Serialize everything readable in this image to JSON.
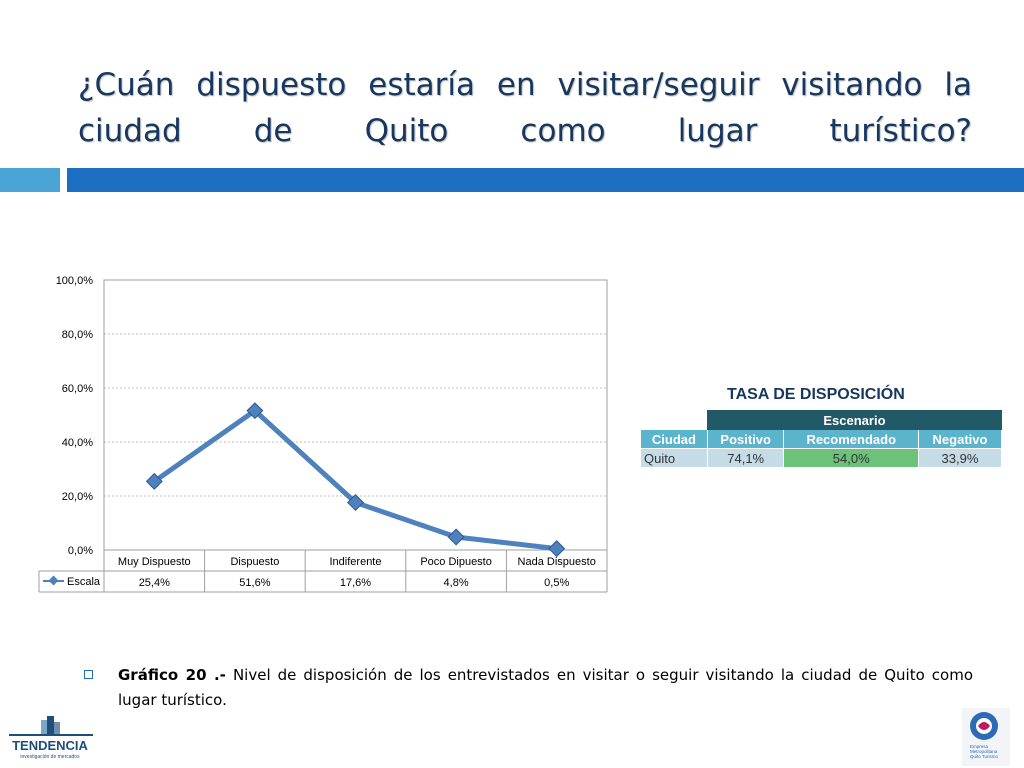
{
  "slide": {
    "title": "¿Cuán dispuesto estaría en visitar/seguir visitando la ciudad de Quito como lugar turístico?"
  },
  "chart_data": {
    "type": "line",
    "categories": [
      "Muy Dispuesto",
      "Dispuesto",
      "Indiferente",
      "Poco Dipuesto",
      "Nada Dispuesto"
    ],
    "series": [
      {
        "name": "Escala",
        "values": [
          25.4,
          51.6,
          17.6,
          4.8,
          0.5
        ],
        "labels": [
          "25,4%",
          "51,6%",
          "17,6%",
          "4,8%",
          "0,5%"
        ],
        "color": "#4f81bd"
      }
    ],
    "ylim": [
      0,
      100
    ],
    "yticks": [
      "0,0%",
      "20,0%",
      "40,0%",
      "60,0%",
      "80,0%",
      "100,0%"
    ],
    "grid": true,
    "legend": "data-table"
  },
  "tasa": {
    "title": "TASA DE DISPOSICIÓN",
    "escenario_label": "Escenario",
    "headers": [
      "Ciudad",
      "Positivo",
      "Recomendado",
      "Negativo"
    ],
    "row": {
      "city": "Quito",
      "positivo": "74,1%",
      "recomendado": "54,0%",
      "negativo": "33,9%"
    },
    "colors": {
      "header_dark": "#215967",
      "header_light": "#5cb3cc",
      "cell": "#c5dbe6",
      "highlight": "#6dc27a"
    }
  },
  "caption": {
    "bold": "Gráfico 20 .-",
    "text": " Nivel de disposición de los entrevistados en visitar o seguir visitando la ciudad de Quito como lugar turístico."
  },
  "logos": {
    "left_name": "TENDENCIA",
    "left_sub": "investigación de mercados",
    "right_lines": [
      "Empresa",
      "Metropolitana",
      "Quito Turismo"
    ]
  },
  "colors": {
    "title": "#17375e",
    "accent_bar": "#1c6ec0",
    "accent_bar_light": "#4aa5d6"
  }
}
